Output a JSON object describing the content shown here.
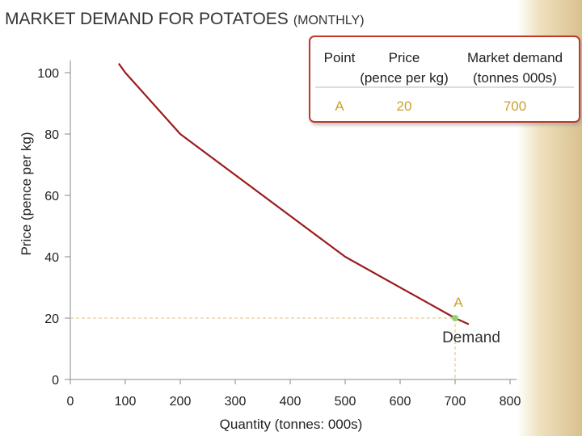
{
  "chart_data": {
    "type": "line",
    "title": "MARKET DEMAND FOR POTATOES",
    "subtitle": "(MONTHLY)",
    "x_label": "Quantity (tonnes: 000s)",
    "y_label": "Price (pence per kg)",
    "xlim": [
      0,
      812
    ],
    "ylim": [
      0,
      104
    ],
    "xticks": [
      0,
      100,
      200,
      300,
      400,
      500,
      600,
      700,
      800
    ],
    "yticks": [
      0,
      20,
      40,
      60,
      80,
      100
    ],
    "grid": false,
    "series": [
      {
        "color": "#9b1c1c",
        "x": [
          88,
          100,
          200,
          500,
          700,
          725
        ],
        "values": [
          103,
          100,
          80,
          40,
          20,
          18
        ]
      }
    ],
    "point": {
      "label": "A",
      "x": 700,
      "value": 20,
      "color": "#8fd66a"
    },
    "curve_label": "Demand",
    "table": {
      "header": [
        [
          "Point"
        ],
        [
          "Price",
          "(pence per kg)"
        ],
        [
          "Market demand",
          "(tonnes 000s)"
        ]
      ],
      "rows": [
        [
          "A",
          "20",
          "700"
        ]
      ]
    }
  }
}
